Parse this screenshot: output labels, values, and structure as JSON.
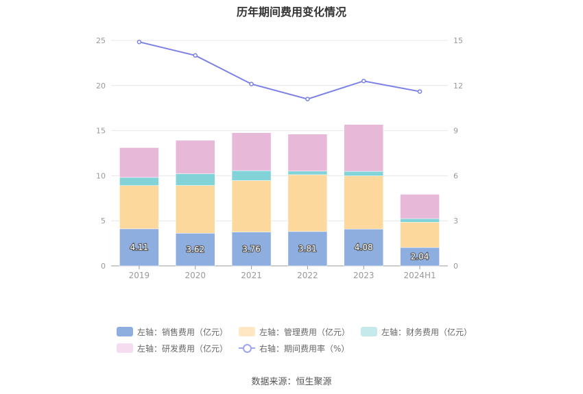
{
  "chart_data": {
    "type": "bar",
    "title": "历年期间费用变化情况",
    "categories": [
      "2019",
      "2020",
      "2021",
      "2022",
      "2023",
      "2024H1"
    ],
    "series": [
      {
        "name": "左轴：销售费用（亿元）",
        "values": [
          4.11,
          3.62,
          3.76,
          3.81,
          4.08,
          2.04
        ],
        "color": "#8eaee0",
        "stack": "left"
      },
      {
        "name": "左轴：管理费用（亿元）",
        "values": [
          4.8,
          5.3,
          5.7,
          6.3,
          5.9,
          2.8
        ],
        "color": "#fdd89c",
        "stack": "left"
      },
      {
        "name": "左轴：财务费用（亿元）",
        "values": [
          0.9,
          1.3,
          1.1,
          0.4,
          0.5,
          0.4
        ],
        "color": "#82d3d8",
        "stack": "left"
      },
      {
        "name": "左轴：研发费用（亿元）",
        "values": [
          3.3,
          3.7,
          4.2,
          4.1,
          5.2,
          2.7
        ],
        "color": "#e8b8d9",
        "stack": "left"
      },
      {
        "name": "右轴：期间费用率（%）",
        "values": [
          14.9,
          14.0,
          12.1,
          11.1,
          12.3,
          11.6
        ],
        "color": "#7b80e6",
        "type": "line",
        "axis": "right"
      }
    ],
    "data_labels": [
      "4.11",
      "3.62",
      "3.76",
      "3.81",
      "4.08",
      "2.04"
    ],
    "y_left": {
      "min": 0,
      "max": 25,
      "ticks": [
        "0",
        "5",
        "10",
        "15",
        "20",
        "25"
      ]
    },
    "y_right": {
      "min": 0,
      "max": 15,
      "ticks": [
        "0",
        "3",
        "6",
        "9",
        "12",
        "15"
      ]
    },
    "grid": true,
    "legend_position": "bottom"
  },
  "source": "数据来源：恒生聚源"
}
